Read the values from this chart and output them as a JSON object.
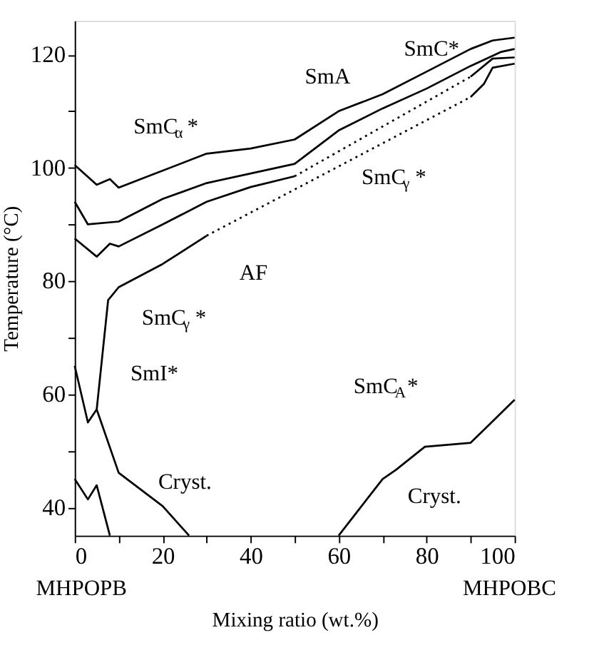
{
  "chart_data": {
    "type": "line",
    "xlabel": "Mixing ratio (wt.%)",
    "ylabel": "Temperature (°C)",
    "xlim": [
      0,
      100
    ],
    "ylim": [
      35,
      126
    ],
    "xticks": [
      0,
      {
        "value": 10,
        "label": null
      },
      20,
      {
        "value": 30,
        "label": null
      },
      40,
      {
        "value": 50,
        "label": null
      },
      60,
      {
        "value": 70,
        "label": null
      },
      80,
      {
        "value": 90,
        "label": null
      },
      100
    ],
    "yticks": [
      40,
      {
        "value": 50,
        "label": null
      },
      60,
      {
        "value": 70,
        "label": null
      },
      80,
      {
        "value": 90,
        "label": null
      },
      100,
      {
        "value": 110,
        "label": null
      },
      120
    ],
    "grid": false,
    "marker": "none",
    "series": [
      {
        "color": "#000000",
        "line_style": "solid",
        "x": [
          0,
          5,
          8,
          10,
          30,
          40,
          50,
          60,
          70,
          80,
          90,
          95,
          100
        ],
        "values": [
          100.5,
          97,
          98,
          96.5,
          102.5,
          103.4,
          105,
          110,
          113,
          117,
          121,
          122.5,
          123
        ]
      },
      {
        "color": "#000000",
        "line_style": "solid",
        "x": [
          0,
          3,
          10,
          20,
          30,
          40,
          50,
          60,
          70,
          80,
          90,
          97,
          100
        ],
        "values": [
          94,
          90,
          90.5,
          94.5,
          97.3,
          99,
          100.7,
          106.6,
          110.5,
          114,
          118,
          120.5,
          121
        ]
      },
      {
        "color": "#000000",
        "line_style": "solid",
        "x": [
          0,
          5,
          8,
          10,
          20,
          30,
          40,
          50
        ],
        "values": [
          87.5,
          84.3,
          86.6,
          86.1,
          90,
          94,
          96.6,
          98.5
        ]
      },
      {
        "color": "#000000",
        "line_style": "dotted",
        "x": [
          50,
          90
        ],
        "values": [
          98.5,
          116.1
        ]
      },
      {
        "color": "#000000",
        "line_style": "solid",
        "x": [
          90,
          95,
          100
        ],
        "values": [
          116.1,
          119.3,
          119.5
        ]
      },
      {
        "color": "#000000",
        "line_style": "dotted",
        "x": [
          30,
          90
        ],
        "values": [
          88,
          112.5
        ]
      },
      {
        "color": "#000000",
        "line_style": "solid",
        "x": [
          90,
          93,
          95,
          100
        ],
        "values": [
          112.5,
          114.8,
          117.7,
          118.4
        ]
      },
      {
        "color": "#000000",
        "line_style": "solid",
        "x": [
          30,
          20,
          10,
          7.6,
          5,
          3,
          0
        ],
        "values": [
          88,
          83,
          78.9,
          76.6,
          57.3,
          55,
          65
        ]
      },
      {
        "color": "#000000",
        "line_style": "solid",
        "x": [
          5,
          10,
          20,
          26
        ],
        "values": [
          57.3,
          46.1,
          40.2,
          35
        ]
      },
      {
        "color": "#000000",
        "line_style": "solid",
        "x": [
          0,
          3,
          5,
          8
        ],
        "values": [
          45,
          41.4,
          43.9,
          35
        ]
      },
      {
        "color": "#000000",
        "line_style": "solid",
        "x": [
          60,
          70,
          73,
          79.6,
          90,
          93.3,
          100
        ],
        "values": [
          35,
          45,
          46.6,
          50.7,
          51.4,
          53.9,
          59
        ]
      }
    ],
    "annotations": [
      "SmA",
      "SmC*",
      "SmC$_{α}$*",
      "SmC$_{γ}$*",
      "AF",
      "SmC$_{γ}$*",
      "SmI*",
      "SmC$_{A}$*",
      "Cryst.",
      "Cryst.",
      "MHPOPB",
      "MHPOBC"
    ]
  }
}
